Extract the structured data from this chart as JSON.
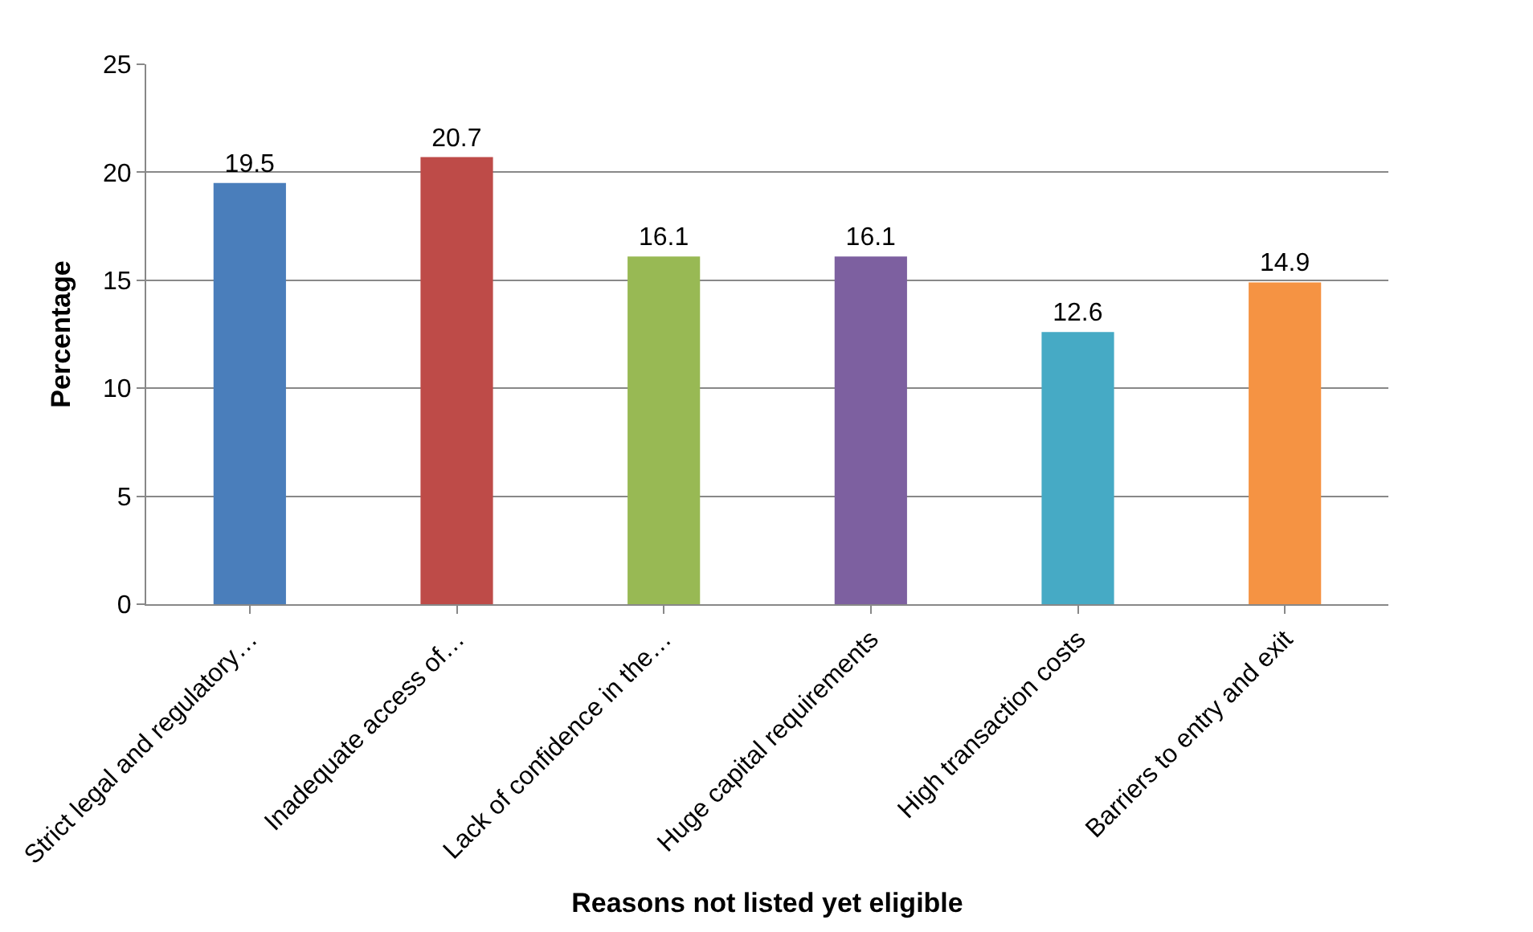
{
  "chart_data": {
    "type": "bar",
    "xlabel": "Reasons not listed yet eligible",
    "ylabel": "Percentage",
    "categories": [
      "Strict legal and regulatory…",
      "Inadequate access of…",
      "Lack of confidence in the…",
      "Huge capital requirements",
      "High transaction costs",
      "Barriers to entry and exit"
    ],
    "values": [
      19.5,
      20.7,
      16.1,
      16.1,
      12.6,
      14.9
    ],
    "colors": [
      "#4a7ebb",
      "#be4b48",
      "#98b954",
      "#7d60a0",
      "#46aac5",
      "#f59343"
    ],
    "ylim": [
      0,
      25
    ],
    "yticks": [
      0,
      5,
      10,
      15,
      20,
      25
    ],
    "grid": "y",
    "data_labels": true
  }
}
